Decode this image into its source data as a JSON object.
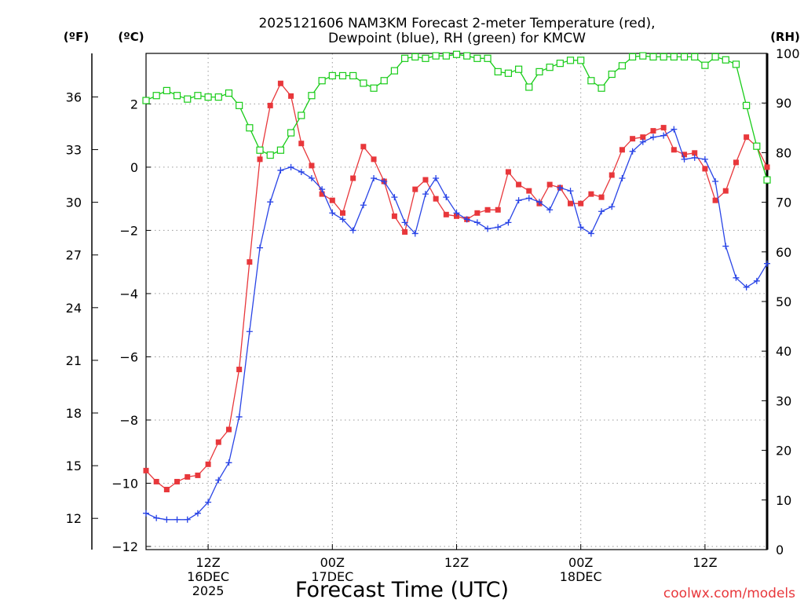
{
  "chart_data": {
    "type": "line",
    "title": {
      "line1": "2025121606 NAM3KM Forecast 2-meter Temperature (red),",
      "line2": "Dewpoint (blue), RH (green) for KMCW"
    },
    "units": {
      "fahrenheit": "(ºF)",
      "celsius": "(ºC)",
      "rh": "(RH)"
    },
    "xlabel": "Forecast Time (UTC)",
    "credit": "coolwx.com/models",
    "x_unit": "forecast hour",
    "xlim": [
      0,
      60
    ],
    "ylim_c": [
      -12.1,
      3.6
    ],
    "ylim_rh": [
      0,
      100
    ],
    "f_ticks": [
      "12",
      "15",
      "18",
      "21",
      "24",
      "27",
      "30",
      "33",
      "36"
    ],
    "c_ticks": [
      "-12",
      "-10",
      "-8",
      "-6",
      "-4",
      "-2",
      "0",
      "2"
    ],
    "rh_ticks": [
      "0",
      "10",
      "20",
      "30",
      "40",
      "50",
      "60",
      "70",
      "80",
      "90",
      "100"
    ],
    "x_ticks": [
      {
        "hour": 6,
        "lines": [
          "12Z",
          "16DEC",
          "2025"
        ]
      },
      {
        "hour": 18,
        "lines": [
          "00Z",
          "17DEC"
        ]
      },
      {
        "hour": 30,
        "lines": [
          "12Z"
        ]
      },
      {
        "hour": 42,
        "lines": [
          "00Z",
          "18DEC"
        ]
      },
      {
        "hour": 54,
        "lines": [
          "12Z"
        ]
      }
    ],
    "series": [
      {
        "name": "Temperature",
        "unit": "C",
        "color": "#e8373b",
        "marker": "filled-square",
        "x": [
          0,
          1,
          2,
          3,
          4,
          5,
          6,
          7,
          8,
          9,
          10,
          11,
          12,
          13,
          14,
          15,
          16,
          17,
          18,
          19,
          20,
          21,
          22,
          23,
          24,
          25,
          26,
          27,
          28,
          29,
          30,
          31,
          32,
          33,
          34,
          35,
          36,
          37,
          38,
          39,
          40,
          41,
          42,
          43,
          44,
          45,
          46,
          47,
          48,
          49,
          50,
          51,
          52,
          53,
          54,
          55,
          56,
          57,
          58,
          59,
          60
        ],
        "values": [
          -9.6,
          -9.95,
          -10.2,
          -9.95,
          -9.8,
          -9.75,
          -9.4,
          -8.7,
          -8.3,
          -6.4,
          -3.0,
          0.25,
          1.95,
          2.65,
          2.25,
          0.75,
          0.05,
          -0.85,
          -1.05,
          -1.45,
          -0.35,
          0.65,
          0.25,
          -0.45,
          -1.55,
          -2.05,
          -0.7,
          -0.4,
          -1.0,
          -1.5,
          -1.55,
          -1.65,
          -1.45,
          -1.35,
          -1.35,
          -0.15,
          -0.55,
          -0.75,
          -1.15,
          -0.55,
          -0.65,
          -1.15,
          -1.15,
          -0.85,
          -0.95,
          -0.25,
          0.55,
          0.9,
          0.95,
          1.15,
          1.25,
          0.55,
          0.4,
          0.45,
          -0.05,
          -1.05,
          -0.75,
          0.15,
          0.95,
          0.65,
          0.0
        ]
      },
      {
        "name": "Dewpoint",
        "unit": "C",
        "color": "#2944e6",
        "marker": "plus",
        "x": [
          0,
          1,
          2,
          3,
          4,
          5,
          6,
          7,
          8,
          9,
          10,
          11,
          12,
          13,
          14,
          15,
          16,
          17,
          18,
          19,
          20,
          21,
          22,
          23,
          24,
          25,
          26,
          27,
          28,
          29,
          30,
          31,
          32,
          33,
          34,
          35,
          36,
          37,
          38,
          39,
          40,
          41,
          42,
          43,
          44,
          45,
          46,
          47,
          48,
          49,
          50,
          51,
          52,
          53,
          54,
          55,
          56,
          57,
          58,
          59,
          60
        ],
        "values": [
          -10.95,
          -11.1,
          -11.15,
          -11.15,
          -11.15,
          -10.95,
          -10.6,
          -9.9,
          -9.35,
          -7.9,
          -5.2,
          -2.55,
          -1.1,
          -0.1,
          0.0,
          -0.15,
          -0.35,
          -0.7,
          -1.45,
          -1.65,
          -2.0,
          -1.2,
          -0.35,
          -0.45,
          -0.95,
          -1.75,
          -2.1,
          -0.85,
          -0.35,
          -0.95,
          -1.45,
          -1.65,
          -1.75,
          -1.95,
          -1.9,
          -1.75,
          -1.05,
          -0.98,
          -1.1,
          -1.35,
          -0.65,
          -0.75,
          -1.9,
          -2.1,
          -1.4,
          -1.25,
          -0.35,
          0.5,
          0.8,
          0.95,
          1.0,
          1.2,
          0.25,
          0.3,
          0.25,
          -0.45,
          -2.5,
          -3.5,
          -3.8,
          -3.6,
          -3.05
        ]
      },
      {
        "name": "RH",
        "unit": "%",
        "color": "#19cc19",
        "marker": "open-square",
        "x": [
          0,
          1,
          2,
          3,
          4,
          5,
          6,
          7,
          8,
          9,
          10,
          11,
          12,
          13,
          14,
          15,
          16,
          17,
          18,
          19,
          20,
          21,
          22,
          23,
          24,
          25,
          26,
          27,
          28,
          29,
          30,
          31,
          32,
          33,
          34,
          35,
          36,
          37,
          38,
          39,
          40,
          41,
          42,
          43,
          44,
          45,
          46,
          47,
          48,
          49,
          50,
          51,
          52,
          53,
          54,
          55,
          56,
          57,
          58,
          59,
          60
        ],
        "values": [
          90.5,
          91.5,
          92.5,
          91.5,
          90.8,
          91.5,
          91.2,
          91.2,
          92.0,
          89.5,
          85.0,
          80.5,
          79.5,
          80.5,
          84.0,
          87.5,
          91.5,
          94.5,
          95.5,
          95.5,
          95.5,
          94.0,
          93.0,
          94.5,
          96.5,
          99.0,
          99.3,
          99.0,
          99.5,
          99.5,
          99.8,
          99.5,
          99.0,
          99.0,
          96.3,
          96.0,
          96.8,
          93.2,
          96.3,
          97.2,
          98.0,
          98.6,
          98.6,
          94.5,
          93.0,
          95.8,
          97.5,
          99.3,
          99.5,
          99.3,
          99.3,
          99.3,
          99.3,
          99.3,
          97.6,
          99.3,
          98.7,
          97.8,
          89.5,
          81.3,
          74.5
        ]
      }
    ]
  }
}
